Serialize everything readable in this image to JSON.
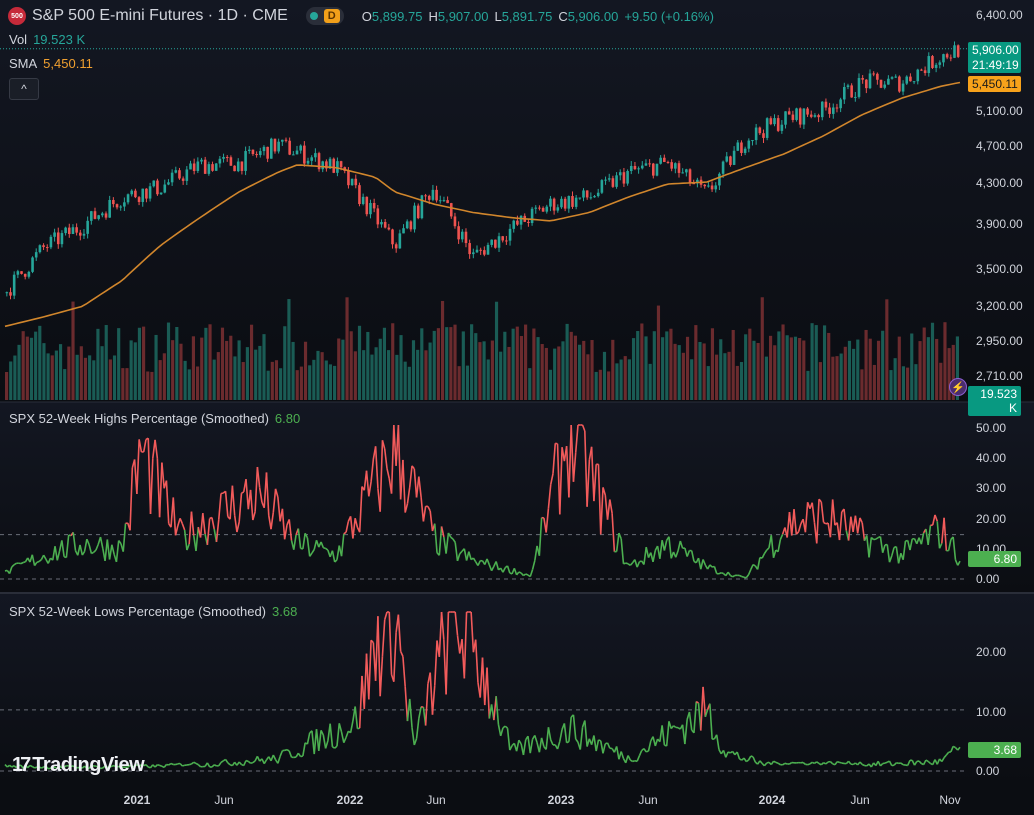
{
  "header": {
    "logo_text": "500",
    "symbol": "S&P 500 E-mini Futures · 1D · CME",
    "interval_badge": "D",
    "ohlc": {
      "o_label": "O",
      "o_value": "5,899.75",
      "h_label": "H",
      "h_value": "5,907.00",
      "l_label": "L",
      "l_value": "5,891.75",
      "c_label": "C",
      "c_value": "5,906.00",
      "change": "+9.50 (+0.16%)"
    }
  },
  "legends": {
    "vol_label": "Vol",
    "vol_value": "19.523 K",
    "sma_label": "SMA",
    "sma_value": "5,450.11",
    "collapse_icon": "^",
    "highs_label": "SPX 52-Week Highs Percentage (Smoothed)",
    "highs_value": "6.80",
    "lows_label": "SPX 52-Week Lows Percentage (Smoothed)",
    "lows_value": "3.68"
  },
  "price_axis": [
    "6,400.00",
    "5,100.00",
    "4,700.00",
    "4,300.00",
    "3,900.00",
    "3,500.00",
    "3,200.00",
    "2,950.00",
    "2,710.00"
  ],
  "price_tags": {
    "last_price": "5,906.00",
    "countdown": "21:49:19",
    "sma": "5,450.11",
    "volume": "19.523 K"
  },
  "highs_axis": [
    "50.00",
    "40.00",
    "30.00",
    "20.00",
    "10.00",
    "0.00"
  ],
  "lows_axis": [
    "20.00",
    "10.00",
    "0.00"
  ],
  "x_axis": [
    {
      "label": "2021",
      "year": true
    },
    {
      "label": "Jun",
      "year": false
    },
    {
      "label": "2022",
      "year": true
    },
    {
      "label": "Jun",
      "year": false
    },
    {
      "label": "2023",
      "year": true
    },
    {
      "label": "Jun",
      "year": false
    },
    {
      "label": "2024",
      "year": true
    },
    {
      "label": "Jun",
      "year": false
    },
    {
      "label": "Nov",
      "year": false
    }
  ],
  "branding": {
    "name": "TradingView",
    "mark": "17"
  },
  "colors": {
    "up": "#26a69a",
    "down": "#ef5350",
    "sma": "#d1862c",
    "highs_line_low": "#4caf50",
    "highs_line_high": "#f25b5b",
    "background": "#0b0d12",
    "pane_bg": "#131722"
  },
  "chart_data": [
    {
      "type": "candlestick",
      "title": "S&P 500 E-mini Futures · 1D · CME",
      "x_range": [
        "2020-10",
        "2024-11"
      ],
      "ylim": [
        2710,
        6400
      ],
      "scale": "log",
      "x": [
        "2020-10",
        "2020-12",
        "2021-02",
        "2021-04",
        "2021-06",
        "2021-08",
        "2021-10",
        "2021-12",
        "2022-01",
        "2022-03",
        "2022-05",
        "2022-06",
        "2022-08",
        "2022-10",
        "2022-12",
        "2023-02",
        "2023-04",
        "2023-06",
        "2023-08",
        "2023-10",
        "2023-12",
        "2024-02",
        "2024-04",
        "2024-06",
        "2024-08",
        "2024-10",
        "2024-11"
      ],
      "close": [
        3300,
        3680,
        3880,
        4150,
        4250,
        4480,
        4500,
        4700,
        4620,
        4450,
        3950,
        3700,
        4250,
        3600,
        3850,
        4080,
        4150,
        4400,
        4500,
        4170,
        4770,
        5000,
        5100,
        5450,
        5450,
        5800,
        5906
      ],
      "sma": {
        "name": "SMA",
        "last": 5450.11,
        "points": [
          3050,
          3120,
          3200,
          3400,
          3700,
          3950,
          4200,
          4400,
          4480,
          4450,
          4350,
          4200,
          4080,
          4000,
          3950,
          3920,
          4000,
          4150,
          4280,
          4300,
          4450,
          4600,
          4800,
          5050,
          5250,
          5400,
          5450.11
        ]
      },
      "volume_last": "19.523 K",
      "grid": false
    },
    {
      "type": "line",
      "title": "SPX 52-Week Highs Percentage (Smoothed)",
      "ylim": [
        0,
        52
      ],
      "threshold": 15,
      "last": 6.8,
      "x": [
        "2020-10",
        "2020-12",
        "2021-02",
        "2021-04",
        "2021-05",
        "2021-07",
        "2021-09",
        "2021-11",
        "2022-01",
        "2022-03",
        "2022-06",
        "2022-08",
        "2022-10",
        "2022-12",
        "2023-01",
        "2023-03",
        "2023-06",
        "2023-08",
        "2023-10",
        "2023-12",
        "2024-02",
        "2024-04",
        "2024-06",
        "2024-08",
        "2024-10",
        "2024-11"
      ],
      "values": [
        2,
        8,
        12,
        10,
        43,
        14,
        22,
        29,
        12,
        8,
        44,
        14,
        6,
        3,
        1,
        51,
        4,
        12,
        4,
        0,
        18,
        21,
        14,
        8,
        17,
        6.8
      ]
    },
    {
      "type": "line",
      "title": "SPX 52-Week Lows Percentage (Smoothed)",
      "ylim": [
        0,
        26
      ],
      "threshold": 10,
      "last": 3.68,
      "x": [
        "2020-10",
        "2021-01",
        "2021-06",
        "2021-12",
        "2022-02",
        "2022-04",
        "2022-05",
        "2022-06",
        "2022-07",
        "2022-09",
        "2022-10",
        "2022-12",
        "2023-03",
        "2023-06",
        "2023-09",
        "2023-10",
        "2023-11",
        "2024-01",
        "2024-06",
        "2024-10",
        "2024-11"
      ],
      "values": [
        0.5,
        0.3,
        0.5,
        2,
        5,
        8,
        20,
        26,
        4,
        25,
        21,
        3,
        7,
        2,
        8,
        10,
        3,
        1,
        1,
        1.5,
        3.68
      ]
    }
  ]
}
